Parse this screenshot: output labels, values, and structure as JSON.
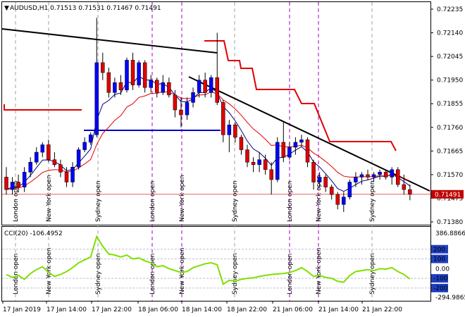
{
  "chart_data": [
    {
      "type": "candlestick",
      "title": "AUDUSD,H1  0.71513 0.71531 0.71467 0.71491",
      "symbol": "AUDUSD",
      "timeframe": "H1",
      "ohlc_header": [
        "0.71513",
        "0.71531",
        "0.71467",
        "0.71491"
      ],
      "current_price": "0.71491",
      "current_price_value": 0.71491,
      "ylim": [
        0.7138,
        0.72235
      ],
      "y_ticks": [
        "0.72235",
        "0.72140",
        "0.72045",
        "0.71950",
        "0.71855",
        "0.71760",
        "0.71665",
        "0.71570",
        "0.71475",
        "0.71380"
      ],
      "x_ticks": [
        "17 Jan 2019",
        "17 Jan 14:00",
        "17 Jan 22:00",
        "18 Jan 06:00",
        "18 Jan 14:00",
        "18 Jan 22:00",
        "21 Jan 06:00",
        "21 Jan 14:00",
        "21 Jan 22:00"
      ],
      "session_labels": [
        "London open",
        "New York open",
        "Sydney open",
        "London open",
        "New York open",
        "Sydney open",
        "London open",
        "New York open",
        "Sydney open"
      ],
      "candles": [
        {
          "o": 0.7156,
          "h": 0.716,
          "l": 0.7149,
          "c": 0.7151
        },
        {
          "o": 0.7151,
          "h": 0.7156,
          "l": 0.7149,
          "c": 0.7154
        },
        {
          "o": 0.7154,
          "h": 0.7157,
          "l": 0.715,
          "c": 0.7152
        },
        {
          "o": 0.7152,
          "h": 0.716,
          "l": 0.715,
          "c": 0.7158
        },
        {
          "o": 0.7158,
          "h": 0.7164,
          "l": 0.7156,
          "c": 0.7162
        },
        {
          "o": 0.7162,
          "h": 0.7168,
          "l": 0.7161,
          "c": 0.7166
        },
        {
          "o": 0.7166,
          "h": 0.717,
          "l": 0.7164,
          "c": 0.7169
        },
        {
          "o": 0.7169,
          "h": 0.7171,
          "l": 0.7162,
          "c": 0.7163
        },
        {
          "o": 0.7163,
          "h": 0.7166,
          "l": 0.716,
          "c": 0.7161
        },
        {
          "o": 0.7161,
          "h": 0.7163,
          "l": 0.7156,
          "c": 0.7158
        },
        {
          "o": 0.7158,
          "h": 0.716,
          "l": 0.7152,
          "c": 0.7154
        },
        {
          "o": 0.7154,
          "h": 0.7162,
          "l": 0.7152,
          "c": 0.716
        },
        {
          "o": 0.716,
          "h": 0.7168,
          "l": 0.7159,
          "c": 0.7167
        },
        {
          "o": 0.7167,
          "h": 0.7172,
          "l": 0.7166,
          "c": 0.717
        },
        {
          "o": 0.717,
          "h": 0.7174,
          "l": 0.7169,
          "c": 0.7173
        },
        {
          "o": 0.7173,
          "h": 0.722,
          "l": 0.7172,
          "c": 0.7202
        },
        {
          "o": 0.7202,
          "h": 0.7206,
          "l": 0.7195,
          "c": 0.7198
        },
        {
          "o": 0.7198,
          "h": 0.72,
          "l": 0.7188,
          "c": 0.719
        },
        {
          "o": 0.719,
          "h": 0.7196,
          "l": 0.7188,
          "c": 0.7194
        },
        {
          "o": 0.7194,
          "h": 0.7197,
          "l": 0.7189,
          "c": 0.7191
        },
        {
          "o": 0.7191,
          "h": 0.7204,
          "l": 0.719,
          "c": 0.7203
        },
        {
          "o": 0.7203,
          "h": 0.7206,
          "l": 0.7191,
          "c": 0.7193
        },
        {
          "o": 0.7193,
          "h": 0.7203,
          "l": 0.7192,
          "c": 0.7202
        },
        {
          "o": 0.7202,
          "h": 0.7203,
          "l": 0.719,
          "c": 0.7192
        },
        {
          "o": 0.7192,
          "h": 0.7197,
          "l": 0.719,
          "c": 0.7195
        },
        {
          "o": 0.7195,
          "h": 0.7196,
          "l": 0.7188,
          "c": 0.719
        },
        {
          "o": 0.719,
          "h": 0.7197,
          "l": 0.7189,
          "c": 0.7194
        },
        {
          "o": 0.7194,
          "h": 0.7196,
          "l": 0.7188,
          "c": 0.7189
        },
        {
          "o": 0.7189,
          "h": 0.7191,
          "l": 0.718,
          "c": 0.7183
        },
        {
          "o": 0.7183,
          "h": 0.7188,
          "l": 0.7176,
          "c": 0.7181
        },
        {
          "o": 0.7181,
          "h": 0.7188,
          "l": 0.7179,
          "c": 0.7186
        },
        {
          "o": 0.7186,
          "h": 0.7192,
          "l": 0.7184,
          "c": 0.719
        },
        {
          "o": 0.719,
          "h": 0.7197,
          "l": 0.7188,
          "c": 0.7195
        },
        {
          "o": 0.7195,
          "h": 0.7198,
          "l": 0.7188,
          "c": 0.719
        },
        {
          "o": 0.719,
          "h": 0.7197,
          "l": 0.7188,
          "c": 0.7196
        },
        {
          "o": 0.7196,
          "h": 0.7214,
          "l": 0.7185,
          "c": 0.7186
        },
        {
          "o": 0.7186,
          "h": 0.7187,
          "l": 0.717,
          "c": 0.7173
        },
        {
          "o": 0.7173,
          "h": 0.7179,
          "l": 0.7166,
          "c": 0.7177
        },
        {
          "o": 0.7177,
          "h": 0.7178,
          "l": 0.717,
          "c": 0.7172
        },
        {
          "o": 0.7172,
          "h": 0.7173,
          "l": 0.7165,
          "c": 0.7167
        },
        {
          "o": 0.7167,
          "h": 0.7169,
          "l": 0.716,
          "c": 0.7162
        },
        {
          "o": 0.7162,
          "h": 0.7164,
          "l": 0.7158,
          "c": 0.7161
        },
        {
          "o": 0.7161,
          "h": 0.7166,
          "l": 0.7158,
          "c": 0.7163
        },
        {
          "o": 0.7163,
          "h": 0.7165,
          "l": 0.7157,
          "c": 0.7159
        },
        {
          "o": 0.7159,
          "h": 0.7162,
          "l": 0.7149,
          "c": 0.7155
        },
        {
          "o": 0.7155,
          "h": 0.7172,
          "l": 0.7154,
          "c": 0.717
        },
        {
          "o": 0.717,
          "h": 0.7178,
          "l": 0.7162,
          "c": 0.7164
        },
        {
          "o": 0.7164,
          "h": 0.717,
          "l": 0.7163,
          "c": 0.7168
        },
        {
          "o": 0.7168,
          "h": 0.7172,
          "l": 0.7165,
          "c": 0.717
        },
        {
          "o": 0.717,
          "h": 0.7173,
          "l": 0.7168,
          "c": 0.7171
        },
        {
          "o": 0.7171,
          "h": 0.7172,
          "l": 0.716,
          "c": 0.7162
        },
        {
          "o": 0.7162,
          "h": 0.7163,
          "l": 0.7151,
          "c": 0.7154
        },
        {
          "o": 0.7154,
          "h": 0.7158,
          "l": 0.7152,
          "c": 0.7156
        },
        {
          "o": 0.7156,
          "h": 0.7157,
          "l": 0.715,
          "c": 0.7152
        },
        {
          "o": 0.7152,
          "h": 0.7153,
          "l": 0.7147,
          "c": 0.7149
        },
        {
          "o": 0.7149,
          "h": 0.715,
          "l": 0.7143,
          "c": 0.7145
        },
        {
          "o": 0.7145,
          "h": 0.715,
          "l": 0.7142,
          "c": 0.7148
        },
        {
          "o": 0.7148,
          "h": 0.7155,
          "l": 0.7147,
          "c": 0.7154
        },
        {
          "o": 0.7154,
          "h": 0.7158,
          "l": 0.7152,
          "c": 0.7156
        },
        {
          "o": 0.7156,
          "h": 0.7158,
          "l": 0.7153,
          "c": 0.7157
        },
        {
          "o": 0.7157,
          "h": 0.7159,
          "l": 0.7155,
          "c": 0.7156
        },
        {
          "o": 0.7156,
          "h": 0.7158,
          "l": 0.7154,
          "c": 0.7157
        },
        {
          "o": 0.7157,
          "h": 0.7159,
          "l": 0.7155,
          "c": 0.7158
        },
        {
          "o": 0.7158,
          "h": 0.7159,
          "l": 0.7155,
          "c": 0.7156
        },
        {
          "o": 0.7156,
          "h": 0.716,
          "l": 0.7153,
          "c": 0.7159
        },
        {
          "o": 0.7159,
          "h": 0.716,
          "l": 0.7152,
          "c": 0.7153
        },
        {
          "o": 0.7153,
          "h": 0.7157,
          "l": 0.7149,
          "c": 0.7151
        },
        {
          "o": 0.7151,
          "h": 0.7153,
          "l": 0.71467,
          "c": 0.71491
        }
      ]
    },
    {
      "type": "line",
      "title": "CCI(20) -106.4952",
      "indicator": "CCI(20)",
      "indicator_value": "-106.4952",
      "ylim": [
        -294.9865,
        386.8866
      ],
      "y_ticks": [
        "386.8866",
        "200",
        "100",
        "0.00",
        "-100",
        "-200",
        "-294.9865"
      ],
      "levels": [
        200,
        100,
        -100,
        -200
      ],
      "values": [
        -60,
        -90,
        -70,
        -110,
        -50,
        -10,
        20,
        -40,
        -80,
        -60,
        -30,
        10,
        60,
        90,
        120,
        330,
        230,
        150,
        140,
        120,
        140,
        100,
        110,
        80,
        60,
        20,
        30,
        0,
        -20,
        -40,
        -30,
        10,
        30,
        50,
        60,
        40,
        -160,
        -120,
        -130,
        -110,
        -100,
        -95,
        -80,
        -70,
        -60,
        -55,
        -50,
        -40,
        -20,
        10,
        -30,
        -80,
        -70,
        -90,
        -100,
        -130,
        -140,
        -70,
        -30,
        -20,
        -10,
        -20,
        0,
        -5,
        10,
        -30,
        -60,
        -106.5
      ]
    }
  ]
}
